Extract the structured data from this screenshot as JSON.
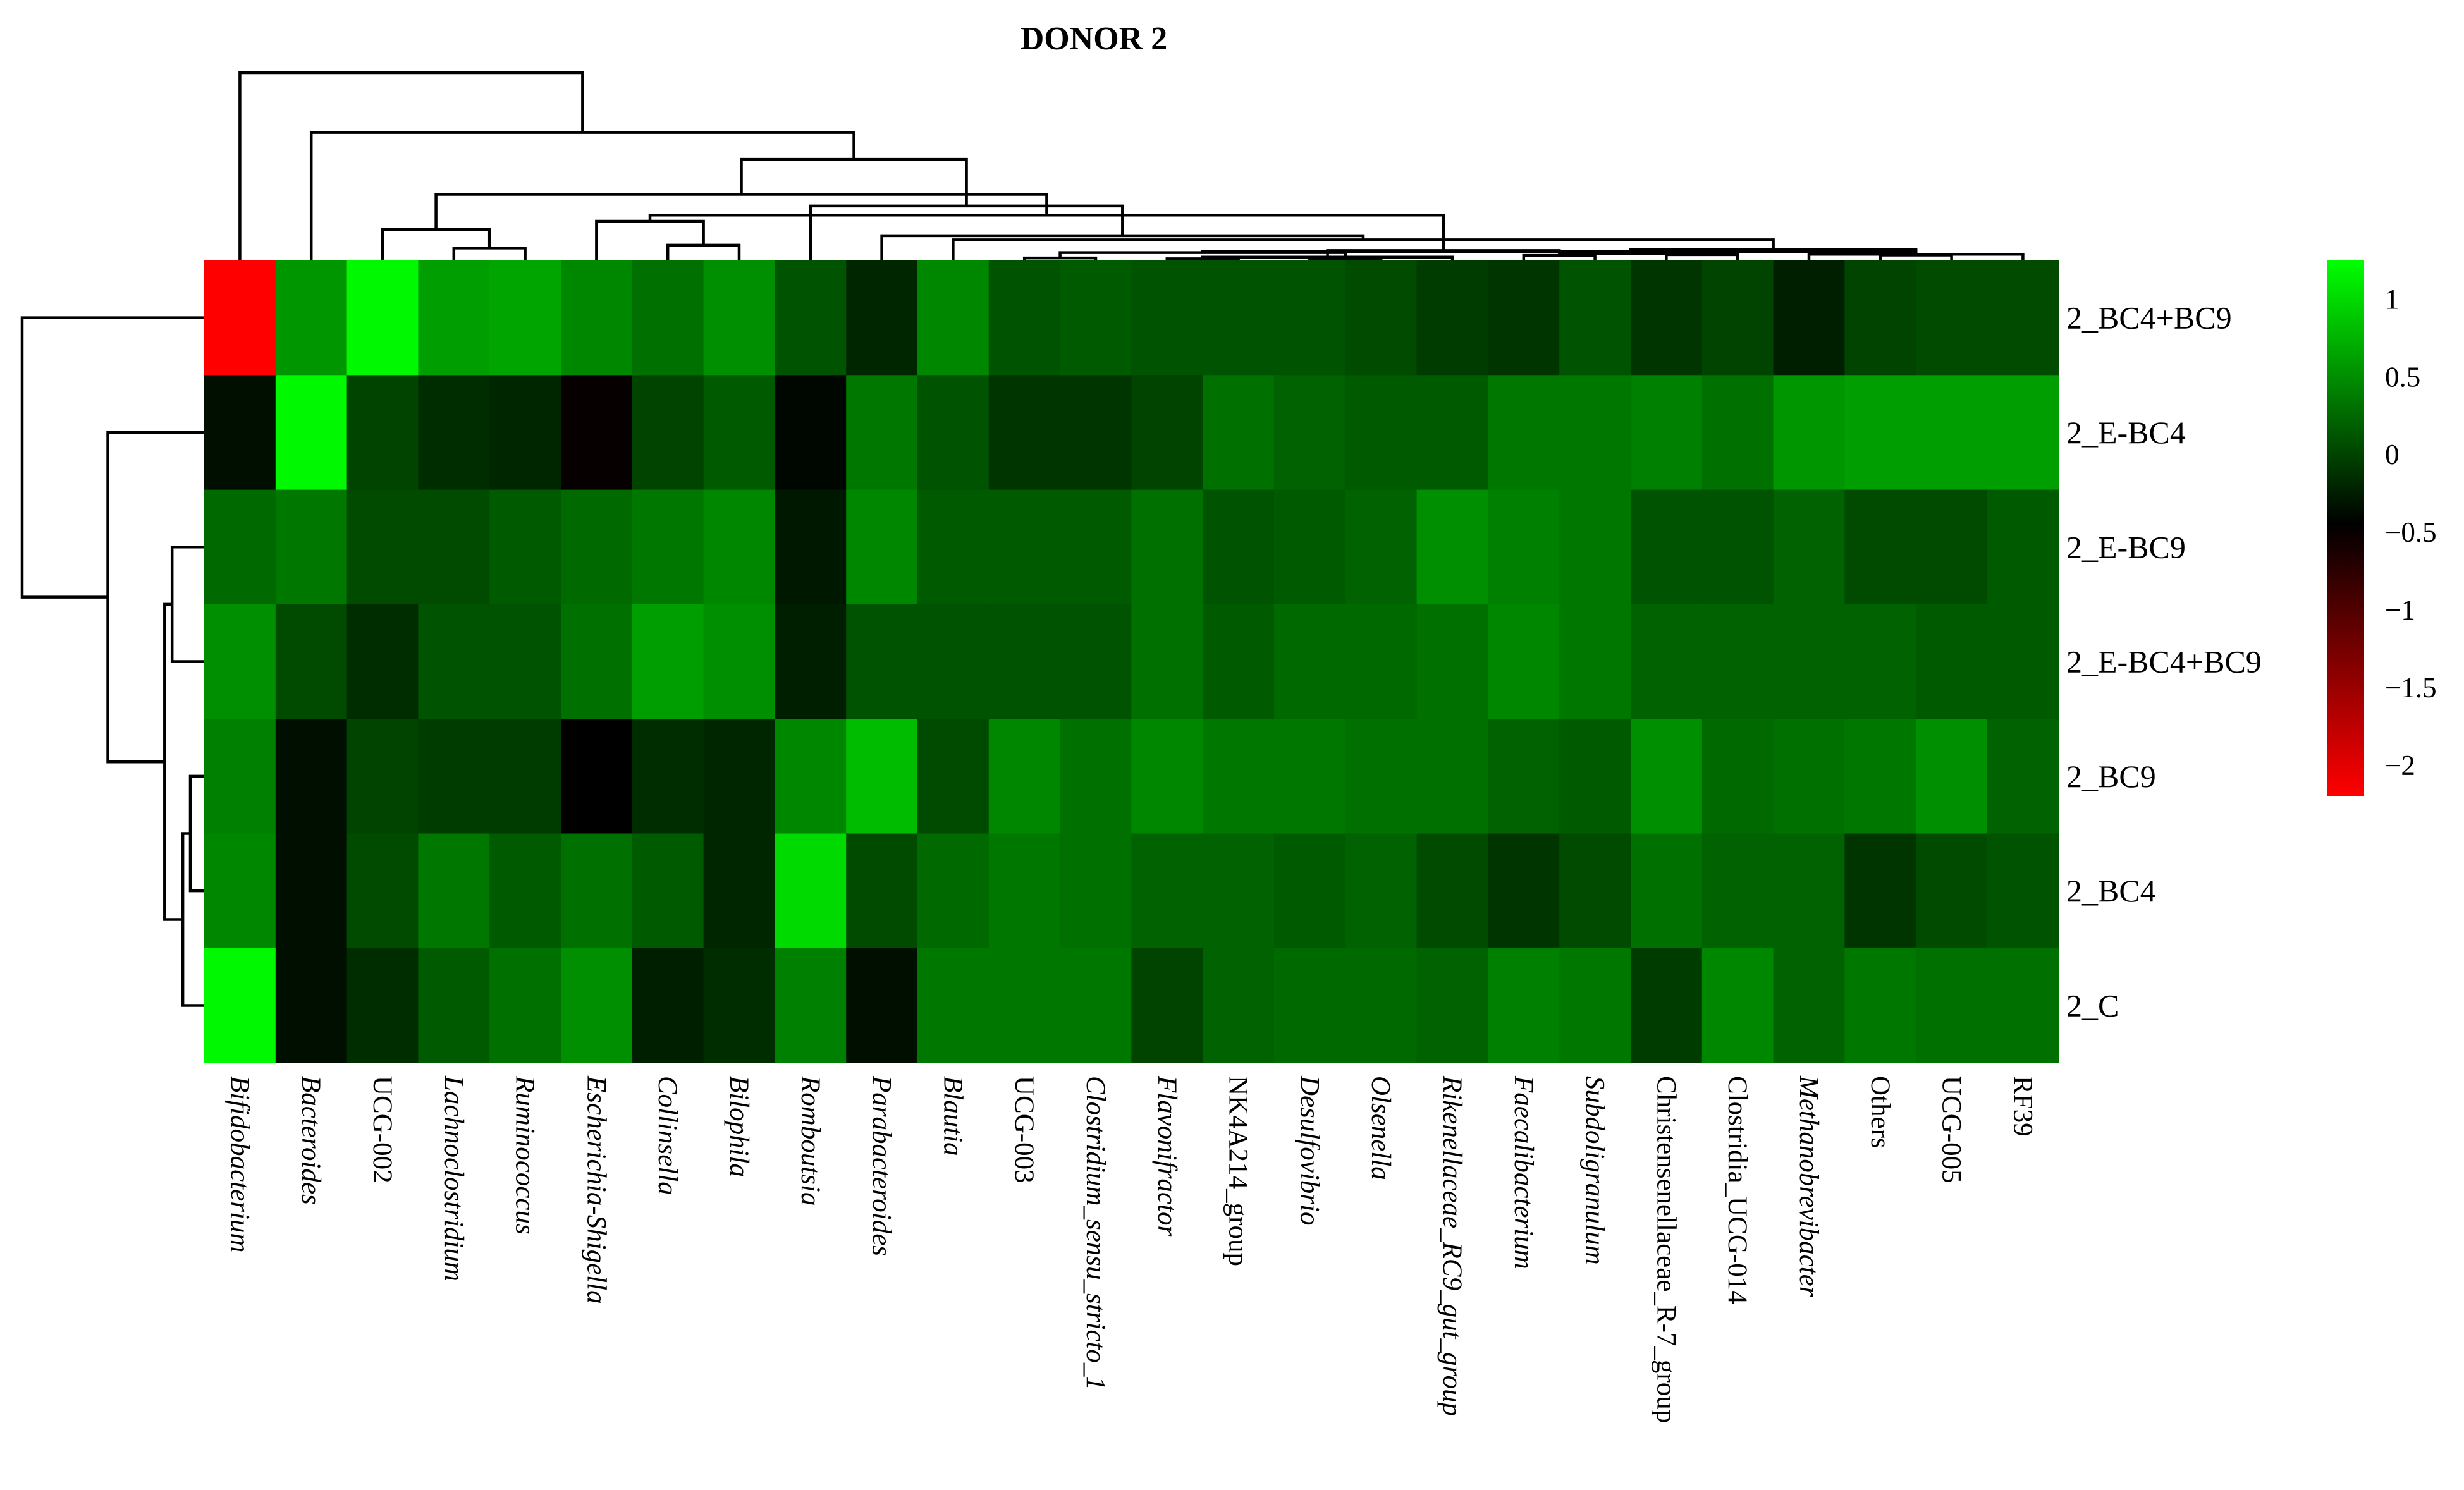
{
  "chart_data": {
    "type": "heatmap",
    "title": "DONOR 2",
    "columns": [
      {
        "label": "Bifidobacterium",
        "italic": true
      },
      {
        "label": "Bacteroides",
        "italic": true
      },
      {
        "label": "UCG-002",
        "italic": false
      },
      {
        "label": "Lachnoclostridium",
        "italic": true
      },
      {
        "label": "Ruminococcus",
        "italic": true
      },
      {
        "label": "Escherichia-Shigella",
        "italic": true
      },
      {
        "label": "Collinsella",
        "italic": true
      },
      {
        "label": "Bilophila",
        "italic": true
      },
      {
        "label": "Romboutsia",
        "italic": true
      },
      {
        "label": "Parabacteroides",
        "italic": true
      },
      {
        "label": "Blautia",
        "italic": true
      },
      {
        "label": "UCG-003",
        "italic": false
      },
      {
        "label": "Clostridium_sensu_stricto_1",
        "italic": true
      },
      {
        "label": "Flavonifractor",
        "italic": true
      },
      {
        "label": "NK4A214_group",
        "italic": false
      },
      {
        "label": "Desulfovibrio",
        "italic": true
      },
      {
        "label": "Olsenella",
        "italic": true
      },
      {
        "label": "Rikenellaceae_RC9_gut_group",
        "italic": true
      },
      {
        "label": "Faecalibacterium",
        "italic": true
      },
      {
        "label": "Subdoligranulum",
        "italic": true
      },
      {
        "label": "Christensenellaceae_R-7_group",
        "italic": false
      },
      {
        "label": "Clostridia_UCG-014",
        "italic": false
      },
      {
        "label": "Methanobrevibacter",
        "italic": true
      },
      {
        "label": "Others",
        "italic": false
      },
      {
        "label": "UCG-005",
        "italic": false
      },
      {
        "label": "RF39",
        "italic": false
      }
    ],
    "rows": [
      "2_BC4+BC9",
      "2_E-BC4",
      "2_E-BC9",
      "2_E-BC4+BC9",
      "2_BC9",
      "2_BC4",
      "2_C"
    ],
    "values": [
      [
        -2.2,
        0.55,
        1.2,
        0.6,
        0.65,
        0.45,
        0.3,
        0.5,
        0.1,
        -0.2,
        0.45,
        0.1,
        0.15,
        0.1,
        0.1,
        0.1,
        0.05,
        -0.05,
        -0.1,
        0.1,
        -0.1,
        0.0,
        -0.25,
        0.0,
        0.05,
        0.05
      ],
      [
        -0.35,
        1.2,
        0.0,
        -0.15,
        -0.2,
        -0.5,
        0.0,
        0.15,
        -0.4,
        0.35,
        0.1,
        -0.1,
        -0.1,
        0.0,
        0.3,
        0.2,
        0.15,
        0.15,
        0.35,
        0.35,
        0.4,
        0.3,
        0.55,
        0.6,
        0.6,
        0.6
      ],
      [
        0.25,
        0.35,
        0.05,
        0.05,
        0.15,
        0.25,
        0.35,
        0.45,
        -0.3,
        0.45,
        0.15,
        0.15,
        0.15,
        0.3,
        0.1,
        0.15,
        0.2,
        0.5,
        0.4,
        0.35,
        0.1,
        0.1,
        0.2,
        0.05,
        0.05,
        0.15
      ],
      [
        0.5,
        0.05,
        -0.15,
        0.1,
        0.1,
        0.3,
        0.6,
        0.5,
        -0.25,
        0.1,
        0.1,
        0.1,
        0.1,
        0.3,
        0.15,
        0.25,
        0.25,
        0.3,
        0.45,
        0.35,
        0.2,
        0.2,
        0.2,
        0.2,
        0.15,
        0.15
      ],
      [
        0.4,
        -0.35,
        0.0,
        -0.05,
        -0.05,
        -0.45,
        -0.15,
        -0.2,
        0.45,
        0.8,
        0.05,
        0.45,
        0.3,
        0.45,
        0.35,
        0.35,
        0.3,
        0.3,
        0.2,
        0.15,
        0.5,
        0.25,
        0.3,
        0.35,
        0.5,
        0.2
      ],
      [
        0.45,
        -0.35,
        0.05,
        0.35,
        0.15,
        0.3,
        0.15,
        -0.2,
        1.0,
        0.05,
        0.25,
        0.35,
        0.3,
        0.2,
        0.2,
        0.15,
        0.2,
        0.05,
        -0.1,
        0.05,
        0.3,
        0.2,
        0.2,
        -0.1,
        0.05,
        0.1
      ],
      [
        1.2,
        -0.35,
        -0.15,
        0.15,
        0.3,
        0.5,
        -0.25,
        -0.15,
        0.4,
        -0.35,
        0.35,
        0.35,
        0.35,
        0.0,
        0.2,
        0.25,
        0.25,
        0.2,
        0.4,
        0.35,
        -0.05,
        0.45,
        0.2,
        0.35,
        0.3,
        0.3
      ]
    ],
    "color_scale": {
      "low": "#ff0000",
      "mid": "#000000",
      "high": "#00ff00",
      "min": -2.2,
      "mid_value": -0.45,
      "max": 1.25
    },
    "legend": {
      "ticks": [
        "1",
        "0.5",
        "0",
        "−0.5",
        "−1",
        "−1.5",
        "−2"
      ],
      "tick_values": [
        1,
        0.5,
        0,
        -0.5,
        -1,
        -1.5,
        -2
      ],
      "placement": "right"
    },
    "column_dendrogram": [
      [
        13,
        14,
        0.04
      ],
      [
        15,
        16,
        0.05
      ],
      [
        11,
        12,
        0.06
      ],
      [
        26,
        17,
        0.08
      ],
      [
        18,
        19,
        0.12
      ],
      [
        23,
        24,
        0.13
      ],
      [
        20,
        21,
        0.14
      ],
      [
        25,
        22,
        0.15
      ],
      [
        30,
        32,
        0.16
      ],
      [
        27,
        28,
        0.19
      ],
      [
        35,
        31,
        0.21
      ],
      [
        29,
        36,
        0.24
      ],
      [
        34,
        33,
        0.27
      ],
      [
        3,
        4,
        0.3
      ],
      [
        6,
        7,
        0.37
      ],
      [
        10,
        38,
        0.5
      ],
      [
        9,
        41,
        0.6
      ],
      [
        2,
        39,
        0.75
      ],
      [
        5,
        40,
        0.95
      ],
      [
        37,
        44,
        1.1
      ],
      [
        8,
        42,
        1.32
      ],
      [
        43,
        45,
        1.6
      ],
      [
        46,
        47,
        2.45
      ],
      [
        1,
        48,
        3.1
      ],
      [
        0,
        49,
        4.55
      ]
    ],
    "row_dendrogram": [
      [
        4,
        5,
        0.13
      ],
      [
        6,
        7,
        0.2
      ],
      [
        2,
        3,
        0.3
      ],
      [
        8,
        9,
        0.37
      ],
      [
        1,
        10,
        0.9
      ],
      [
        0,
        11,
        1.7
      ]
    ]
  }
}
